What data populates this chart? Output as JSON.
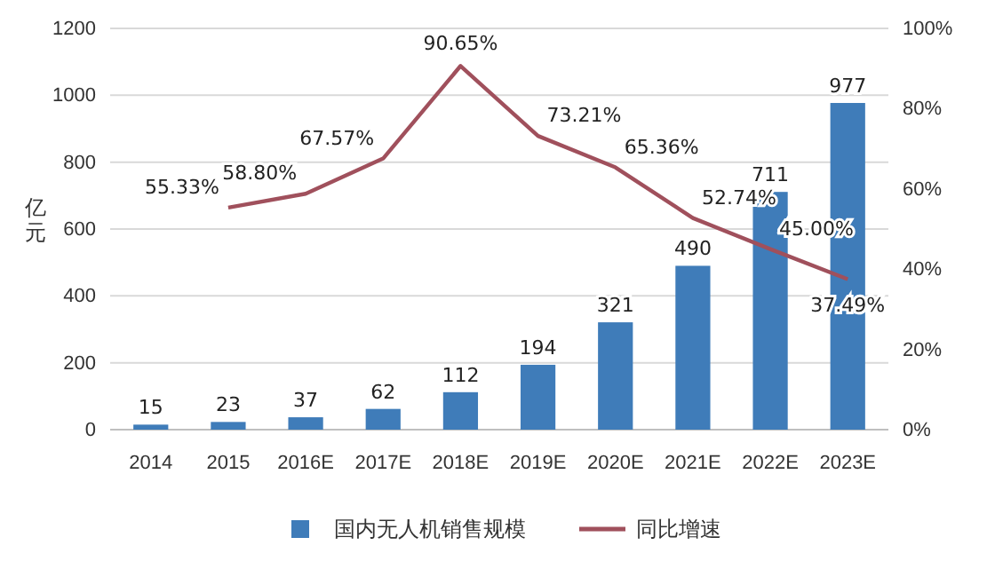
{
  "chart_data": {
    "type": "bar",
    "ylabel": "亿元",
    "categories": [
      "2014",
      "2015",
      "2016E",
      "2017E",
      "2018E",
      "2019E",
      "2020E",
      "2021E",
      "2022E",
      "2023E"
    ],
    "series": [
      {
        "name": "国内无人机销售规模",
        "color": "#3f7cb9",
        "values": [
          15,
          23,
          37,
          62,
          112,
          194,
          321,
          490,
          711,
          977
        ],
        "value_labels": [
          "15",
          "23",
          "37",
          "62",
          "112",
          "194",
          "321",
          "490",
          "711",
          "977"
        ]
      },
      {
        "name": "同比增速",
        "type": "line",
        "axis": "y2",
        "color": "#a0505c",
        "values": [
          null,
          55.33,
          58.8,
          67.57,
          90.65,
          73.21,
          65.36,
          52.74,
          45.0,
          37.49
        ],
        "value_labels": [
          null,
          "55.33%",
          "58.80%",
          "67.57%",
          "90.65%",
          "73.21%",
          "65.36%",
          "52.74%",
          "45.00%",
          "37.49%"
        ]
      }
    ],
    "ylim": [
      0,
      1200
    ],
    "yticks": [
      0,
      200,
      400,
      600,
      800,
      1000,
      1200
    ],
    "y2lim": [
      0,
      100
    ],
    "y2ticks": [
      {
        "value": 0,
        "label": "0%"
      },
      {
        "value": 20,
        "label": "20%"
      },
      {
        "value": 40,
        "label": "40%"
      },
      {
        "value": 60,
        "label": "60%"
      },
      {
        "value": 80,
        "label": "80%"
      },
      {
        "value": 100,
        "label": "100%"
      }
    ],
    "grid": "y",
    "legend": "bottom",
    "marker": "none",
    "line_style": "solid"
  }
}
